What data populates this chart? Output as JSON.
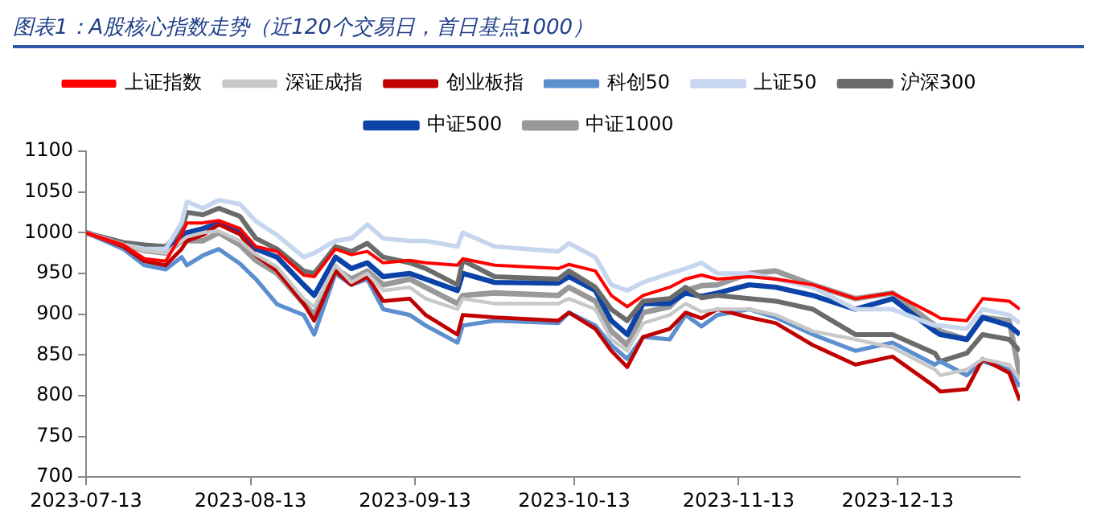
{
  "chart_data": {
    "type": "line",
    "title": "图表1：A股核心指数走势（近120个交易日，首日基点1000）",
    "x": [
      "2023-07-13",
      "2023-07-20",
      "2023-07-24",
      "2023-07-28",
      "2023-07-31",
      "2023-08-01",
      "2023-08-04",
      "2023-08-07",
      "2023-08-11",
      "2023-08-14",
      "2023-08-18",
      "2023-08-23",
      "2023-08-25",
      "2023-08-29",
      "2023-09-01",
      "2023-09-04",
      "2023-09-07",
      "2023-09-12",
      "2023-09-15",
      "2023-09-21",
      "2023-09-22",
      "2023-09-28",
      "2023-10-10",
      "2023-10-12",
      "2023-10-17",
      "2023-10-20",
      "2023-10-23",
      "2023-10-26",
      "2023-10-31",
      "2023-11-03",
      "2023-11-06",
      "2023-11-09",
      "2023-11-15",
      "2023-11-20",
      "2023-11-27",
      "2023-12-05",
      "2023-12-12",
      "2023-12-20",
      "2023-12-21",
      "2023-12-26",
      "2023-12-29",
      "2024-01-03",
      "2024-01-05"
    ],
    "series": [
      {
        "name": "上证指数",
        "color": "#ff0000",
        "values": [
          1000,
          985,
          968,
          965,
          998,
          1012,
          1012,
          1015,
          1005,
          983,
          977,
          948,
          946,
          980,
          973,
          977,
          963,
          966,
          963,
          960,
          968,
          960,
          956,
          961,
          953,
          923,
          909,
          923,
          933,
          943,
          948,
          943,
          946,
          943,
          936,
          919,
          926,
          899,
          895,
          892,
          919,
          916,
          906
        ]
      },
      {
        "name": "深证成指",
        "color": "#c8c8c8",
        "values": [
          1000,
          985,
          978,
          975,
          990,
          995,
          1000,
          1002,
          990,
          973,
          958,
          919,
          909,
          960,
          939,
          950,
          929,
          933,
          919,
          906,
          919,
          913,
          913,
          919,
          906,
          869,
          855,
          889,
          899,
          913,
          903,
          906,
          906,
          899,
          879,
          869,
          859,
          832,
          825,
          832,
          845,
          838,
          820
        ]
      },
      {
        "name": "创业板指",
        "color": "#c00000",
        "values": [
          1000,
          983,
          965,
          960,
          980,
          990,
          997,
          1010,
          998,
          972,
          953,
          913,
          892,
          953,
          936,
          946,
          916,
          919,
          899,
          875,
          899,
          896,
          892,
          902,
          882,
          855,
          835,
          872,
          882,
          902,
          895,
          906,
          896,
          889,
          862,
          838,
          848,
          811,
          805,
          808,
          845,
          828,
          794
        ]
      },
      {
        "name": "科创50",
        "color": "#5b8fd0",
        "values": [
          1000,
          980,
          960,
          955,
          970,
          960,
          972,
          980,
          962,
          943,
          912,
          899,
          875,
          950,
          936,
          943,
          906,
          899,
          886,
          865,
          886,
          892,
          889,
          902,
          886,
          862,
          845,
          872,
          869,
          899,
          885,
          899,
          906,
          896,
          875,
          855,
          865,
          838,
          842,
          825,
          842,
          832,
          811
        ]
      },
      {
        "name": "上证50",
        "color": "#c5d6ee",
        "values": [
          1000,
          985,
          980,
          980,
          1012,
          1038,
          1030,
          1040,
          1035,
          1014,
          997,
          970,
          975,
          990,
          993,
          1010,
          993,
          990,
          990,
          983,
          1000,
          983,
          977,
          987,
          970,
          936,
          929,
          939,
          950,
          956,
          963,
          950,
          950,
          943,
          933,
          906,
          906,
          886,
          886,
          882,
          906,
          899,
          889
        ]
      },
      {
        "name": "沪深300",
        "color": "#6b6b6b",
        "values": [
          1000,
          988,
          985,
          983,
          1003,
          1025,
          1022,
          1030,
          1020,
          993,
          980,
          953,
          950,
          983,
          977,
          987,
          970,
          963,
          956,
          936,
          966,
          946,
          943,
          953,
          933,
          906,
          892,
          916,
          919,
          933,
          920,
          923,
          919,
          916,
          906,
          875,
          875,
          852,
          842,
          852,
          875,
          869,
          855
        ]
      },
      {
        "name": "中证500",
        "color": "#0b43a8",
        "values": [
          1000,
          985,
          982,
          980,
          995,
          1000,
          1005,
          1012,
          1000,
          980,
          970,
          936,
          923,
          970,
          956,
          963,
          946,
          950,
          943,
          929,
          950,
          939,
          938,
          946,
          929,
          892,
          875,
          913,
          913,
          926,
          922,
          926,
          936,
          933,
          923,
          906,
          919,
          879,
          875,
          869,
          896,
          886,
          875
        ]
      },
      {
        "name": "中证1000",
        "color": "#999999",
        "values": [
          1000,
          985,
          978,
          975,
          990,
          990,
          990,
          1000,
          985,
          966,
          950,
          913,
          899,
          956,
          943,
          953,
          936,
          943,
          933,
          913,
          923,
          926,
          923,
          933,
          916,
          879,
          862,
          902,
          909,
          929,
          935,
          936,
          950,
          953,
          936,
          919,
          926,
          886,
          879,
          869,
          896,
          892,
          825
        ]
      }
    ],
    "xlim": [
      "2023-07-13",
      "2024-01-05"
    ],
    "xticks": [
      "2023-07-13",
      "2023-08-13",
      "2023-09-13",
      "2023-10-13",
      "2023-11-13",
      "2023-12-13"
    ],
    "ylim": [
      700,
      1100
    ],
    "yticks": [
      700,
      750,
      800,
      850,
      900,
      950,
      1000,
      1050,
      1100
    ],
    "legend": "top",
    "marker": "none",
    "line_style": "solid"
  }
}
